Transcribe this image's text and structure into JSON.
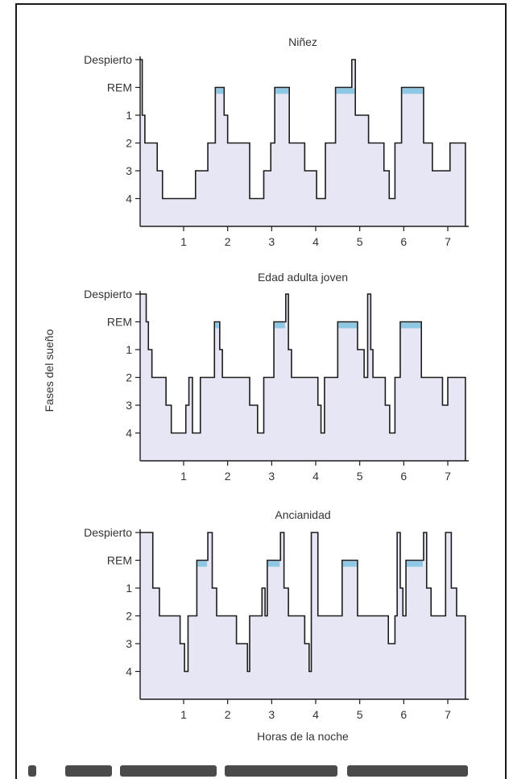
{
  "page": {
    "ylabel": "Fases del sueño",
    "xlabel": "Horas de la noche"
  },
  "colors": {
    "fill": "#e6e6f4",
    "rem": "#8fc8e4",
    "line": "#1c1c1c",
    "frame": "#1a1a1a"
  },
  "chart_data": [
    {
      "type": "line",
      "title": "Niñez",
      "y_categories": [
        "Despierto",
        "REM",
        "1",
        "2",
        "3",
        "4"
      ],
      "x_ticks": [
        "1",
        "2",
        "3",
        "4",
        "5",
        "6",
        "7"
      ],
      "xlim": [
        0,
        7.4
      ],
      "points": [
        [
          0.0,
          0
        ],
        [
          0.0,
          0
        ],
        [
          0.06,
          0
        ],
        [
          0.06,
          2
        ],
        [
          0.12,
          2
        ],
        [
          0.12,
          3
        ],
        [
          0.4,
          3
        ],
        [
          0.4,
          4
        ],
        [
          0.52,
          4
        ],
        [
          0.52,
          5
        ],
        [
          1.27,
          5
        ],
        [
          1.27,
          4
        ],
        [
          1.55,
          4
        ],
        [
          1.55,
          3
        ],
        [
          1.72,
          3
        ],
        [
          1.72,
          1
        ],
        [
          1.92,
          1
        ],
        [
          1.92,
          2
        ],
        [
          2.0,
          2
        ],
        [
          2.0,
          3
        ],
        [
          2.5,
          3
        ],
        [
          2.5,
          5
        ],
        [
          2.82,
          5
        ],
        [
          2.82,
          4
        ],
        [
          2.98,
          4
        ],
        [
          2.98,
          3
        ],
        [
          3.07,
          3
        ],
        [
          3.07,
          1
        ],
        [
          3.4,
          1
        ],
        [
          3.4,
          3
        ],
        [
          3.75,
          3
        ],
        [
          3.75,
          4
        ],
        [
          4.02,
          4
        ],
        [
          4.02,
          5
        ],
        [
          4.22,
          5
        ],
        [
          4.22,
          3
        ],
        [
          4.45,
          3
        ],
        [
          4.45,
          1
        ],
        [
          4.82,
          1
        ],
        [
          4.82,
          0
        ],
        [
          4.9,
          0
        ],
        [
          4.9,
          2
        ],
        [
          5.2,
          2
        ],
        [
          5.2,
          3
        ],
        [
          5.55,
          3
        ],
        [
          5.55,
          4
        ],
        [
          5.67,
          4
        ],
        [
          5.67,
          5
        ],
        [
          5.8,
          5
        ],
        [
          5.8,
          3
        ],
        [
          5.95,
          3
        ],
        [
          5.95,
          1
        ],
        [
          6.45,
          1
        ],
        [
          6.45,
          3
        ],
        [
          6.65,
          3
        ],
        [
          6.65,
          4
        ],
        [
          7.05,
          4
        ],
        [
          7.05,
          3
        ],
        [
          7.4,
          3
        ],
        [
          7.4,
          6
        ]
      ],
      "rem_bands": [
        [
          1.72,
          1.92
        ],
        [
          3.07,
          3.4
        ],
        [
          4.45,
          4.9
        ],
        [
          5.95,
          6.45
        ]
      ]
    },
    {
      "type": "line",
      "title": "Edad adulta joven",
      "y_categories": [
        "Despierto",
        "REM",
        "1",
        "2",
        "3",
        "4"
      ],
      "x_ticks": [
        "1",
        "2",
        "3",
        "4",
        "5",
        "6",
        "7"
      ],
      "xlim": [
        0,
        7.4
      ],
      "points": [
        [
          0.0,
          0
        ],
        [
          0.15,
          0
        ],
        [
          0.15,
          1
        ],
        [
          0.2,
          1
        ],
        [
          0.2,
          2
        ],
        [
          0.28,
          2
        ],
        [
          0.28,
          3
        ],
        [
          0.6,
          3
        ],
        [
          0.6,
          4
        ],
        [
          0.72,
          4
        ],
        [
          0.72,
          5
        ],
        [
          1.05,
          5
        ],
        [
          1.05,
          4
        ],
        [
          1.12,
          4
        ],
        [
          1.12,
          3
        ],
        [
          1.2,
          3
        ],
        [
          1.2,
          5
        ],
        [
          1.38,
          5
        ],
        [
          1.38,
          3
        ],
        [
          1.7,
          3
        ],
        [
          1.7,
          1
        ],
        [
          1.82,
          1
        ],
        [
          1.82,
          2
        ],
        [
          1.88,
          2
        ],
        [
          1.88,
          3
        ],
        [
          2.5,
          3
        ],
        [
          2.5,
          4
        ],
        [
          2.68,
          4
        ],
        [
          2.68,
          5
        ],
        [
          2.82,
          5
        ],
        [
          2.82,
          3
        ],
        [
          3.05,
          3
        ],
        [
          3.05,
          1
        ],
        [
          3.32,
          1
        ],
        [
          3.32,
          0
        ],
        [
          3.38,
          0
        ],
        [
          3.38,
          2
        ],
        [
          3.45,
          2
        ],
        [
          3.45,
          3
        ],
        [
          4.05,
          3
        ],
        [
          4.05,
          4
        ],
        [
          4.12,
          4
        ],
        [
          4.12,
          5
        ],
        [
          4.2,
          5
        ],
        [
          4.2,
          3
        ],
        [
          4.5,
          3
        ],
        [
          4.5,
          1
        ],
        [
          4.95,
          1
        ],
        [
          4.95,
          2
        ],
        [
          5.1,
          2
        ],
        [
          5.1,
          3
        ],
        [
          5.18,
          3
        ],
        [
          5.18,
          0
        ],
        [
          5.25,
          0
        ],
        [
          5.25,
          2
        ],
        [
          5.3,
          2
        ],
        [
          5.3,
          3
        ],
        [
          5.58,
          3
        ],
        [
          5.58,
          4
        ],
        [
          5.68,
          4
        ],
        [
          5.68,
          5
        ],
        [
          5.8,
          5
        ],
        [
          5.8,
          3
        ],
        [
          5.92,
          3
        ],
        [
          5.92,
          1
        ],
        [
          6.4,
          1
        ],
        [
          6.4,
          3
        ],
        [
          6.88,
          3
        ],
        [
          6.88,
          4
        ],
        [
          7.0,
          4
        ],
        [
          7.0,
          3
        ],
        [
          7.4,
          3
        ],
        [
          7.4,
          6
        ]
      ],
      "rem_bands": [
        [
          1.7,
          1.82
        ],
        [
          3.05,
          3.32
        ],
        [
          4.5,
          4.95
        ],
        [
          5.92,
          6.4
        ]
      ]
    },
    {
      "type": "line",
      "title": "Ancianidad",
      "y_categories": [
        "Despierto",
        "REM",
        "1",
        "2",
        "3",
        "4"
      ],
      "x_ticks": [
        "1",
        "2",
        "3",
        "4",
        "5",
        "6",
        "7"
      ],
      "xlim": [
        0,
        7.4
      ],
      "points": [
        [
          0.0,
          0
        ],
        [
          0.3,
          0
        ],
        [
          0.3,
          2
        ],
        [
          0.45,
          2
        ],
        [
          0.45,
          3
        ],
        [
          0.92,
          3
        ],
        [
          0.92,
          4
        ],
        [
          1.02,
          4
        ],
        [
          1.02,
          5
        ],
        [
          1.1,
          5
        ],
        [
          1.1,
          3
        ],
        [
          1.3,
          3
        ],
        [
          1.3,
          1
        ],
        [
          1.55,
          1
        ],
        [
          1.55,
          0
        ],
        [
          1.65,
          0
        ],
        [
          1.65,
          2
        ],
        [
          1.75,
          2
        ],
        [
          1.75,
          3
        ],
        [
          2.2,
          3
        ],
        [
          2.2,
          4
        ],
        [
          2.45,
          4
        ],
        [
          2.45,
          5
        ],
        [
          2.5,
          5
        ],
        [
          2.5,
          3
        ],
        [
          2.78,
          3
        ],
        [
          2.78,
          2
        ],
        [
          2.85,
          2
        ],
        [
          2.85,
          3
        ],
        [
          2.9,
          3
        ],
        [
          2.9,
          1
        ],
        [
          3.2,
          1
        ],
        [
          3.2,
          0
        ],
        [
          3.28,
          0
        ],
        [
          3.28,
          2
        ],
        [
          3.38,
          2
        ],
        [
          3.38,
          3
        ],
        [
          3.75,
          3
        ],
        [
          3.75,
          4
        ],
        [
          3.85,
          4
        ],
        [
          3.85,
          5
        ],
        [
          3.9,
          5
        ],
        [
          3.9,
          0
        ],
        [
          4.05,
          0
        ],
        [
          4.05,
          3
        ],
        [
          4.6,
          3
        ],
        [
          4.6,
          1
        ],
        [
          4.95,
          1
        ],
        [
          4.95,
          3
        ],
        [
          5.65,
          3
        ],
        [
          5.65,
          4
        ],
        [
          5.8,
          4
        ],
        [
          5.8,
          3
        ],
        [
          5.85,
          3
        ],
        [
          5.85,
          0
        ],
        [
          5.92,
          0
        ],
        [
          5.92,
          2
        ],
        [
          5.98,
          2
        ],
        [
          5.98,
          3
        ],
        [
          6.05,
          3
        ],
        [
          6.05,
          1
        ],
        [
          6.45,
          1
        ],
        [
          6.45,
          0
        ],
        [
          6.52,
          0
        ],
        [
          6.52,
          2
        ],
        [
          6.62,
          2
        ],
        [
          6.62,
          3
        ],
        [
          6.95,
          3
        ],
        [
          6.95,
          0
        ],
        [
          7.08,
          0
        ],
        [
          7.08,
          2
        ],
        [
          7.2,
          2
        ],
        [
          7.2,
          3
        ],
        [
          7.4,
          3
        ],
        [
          7.4,
          6
        ]
      ],
      "rem_bands": [
        [
          1.3,
          1.55
        ],
        [
          2.9,
          3.2
        ],
        [
          4.6,
          4.95
        ],
        [
          6.05,
          6.45
        ]
      ]
    }
  ]
}
